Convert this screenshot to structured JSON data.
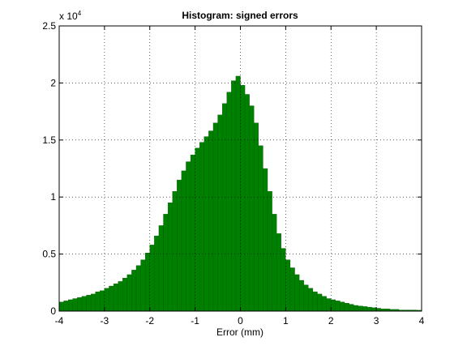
{
  "chart_data": {
    "type": "histogram",
    "title": "Histogram: signed errors",
    "xlabel": "Error (mm)",
    "y_scale": {
      "base": "x 10",
      "exponent": "4"
    },
    "color": "#008000",
    "edge_color": "#005000",
    "grid": true,
    "bins": [
      -4.0,
      -3.9,
      -3.8,
      -3.7,
      -3.6,
      -3.5,
      -3.4,
      -3.3,
      -3.2,
      -3.1,
      -3.0,
      -2.9,
      -2.8,
      -2.7,
      -2.6,
      -2.5,
      -2.4,
      -2.3,
      -2.2,
      -2.1,
      -2.0,
      -1.9,
      -1.8,
      -1.7,
      -1.6,
      -1.5,
      -1.4,
      -1.3,
      -1.2,
      -1.1,
      -1.0,
      -0.9,
      -0.8,
      -0.7,
      -0.6,
      -0.5,
      -0.4,
      -0.3,
      -0.2,
      -0.1,
      0.0,
      0.1,
      0.2,
      0.3,
      0.4,
      0.5,
      0.6,
      0.7,
      0.8,
      0.9,
      1.0,
      1.1,
      1.2,
      1.3,
      1.4,
      1.5,
      1.6,
      1.7,
      1.8,
      1.9,
      2.0,
      2.1,
      2.2,
      2.3,
      2.4,
      2.5,
      2.6,
      2.7,
      2.8,
      2.9,
      3.0,
      3.1,
      3.2,
      3.3,
      3.4,
      3.5,
      3.6,
      3.7,
      3.8,
      3.9,
      4.0
    ],
    "values": [
      0.08,
      0.09,
      0.1,
      0.11,
      0.12,
      0.13,
      0.14,
      0.15,
      0.17,
      0.18,
      0.2,
      0.22,
      0.24,
      0.26,
      0.29,
      0.32,
      0.36,
      0.4,
      0.45,
      0.51,
      0.58,
      0.66,
      0.75,
      0.85,
      0.95,
      1.05,
      1.15,
      1.23,
      1.31,
      1.37,
      1.43,
      1.48,
      1.53,
      1.58,
      1.65,
      1.72,
      1.82,
      1.92,
      2.02,
      2.06,
      1.98,
      1.9,
      1.8,
      1.65,
      1.45,
      1.25,
      1.05,
      0.85,
      0.68,
      0.55,
      0.45,
      0.38,
      0.32,
      0.27,
      0.23,
      0.2,
      0.17,
      0.15,
      0.13,
      0.11,
      0.1,
      0.09,
      0.08,
      0.07,
      0.06,
      0.05,
      0.045,
      0.04,
      0.035,
      0.03,
      0.025,
      0.02,
      0.02,
      0.015,
      0.015,
      0.01,
      0.01,
      0.01,
      0.01,
      0.008
    ],
    "xlim": [
      -4,
      4
    ],
    "xticks": [
      -4,
      -3,
      -2,
      -1,
      0,
      1,
      2,
      3,
      4
    ],
    "ylim": [
      0,
      2.5
    ],
    "yticks": [
      0,
      0.5,
      1,
      1.5,
      2,
      2.5
    ]
  }
}
